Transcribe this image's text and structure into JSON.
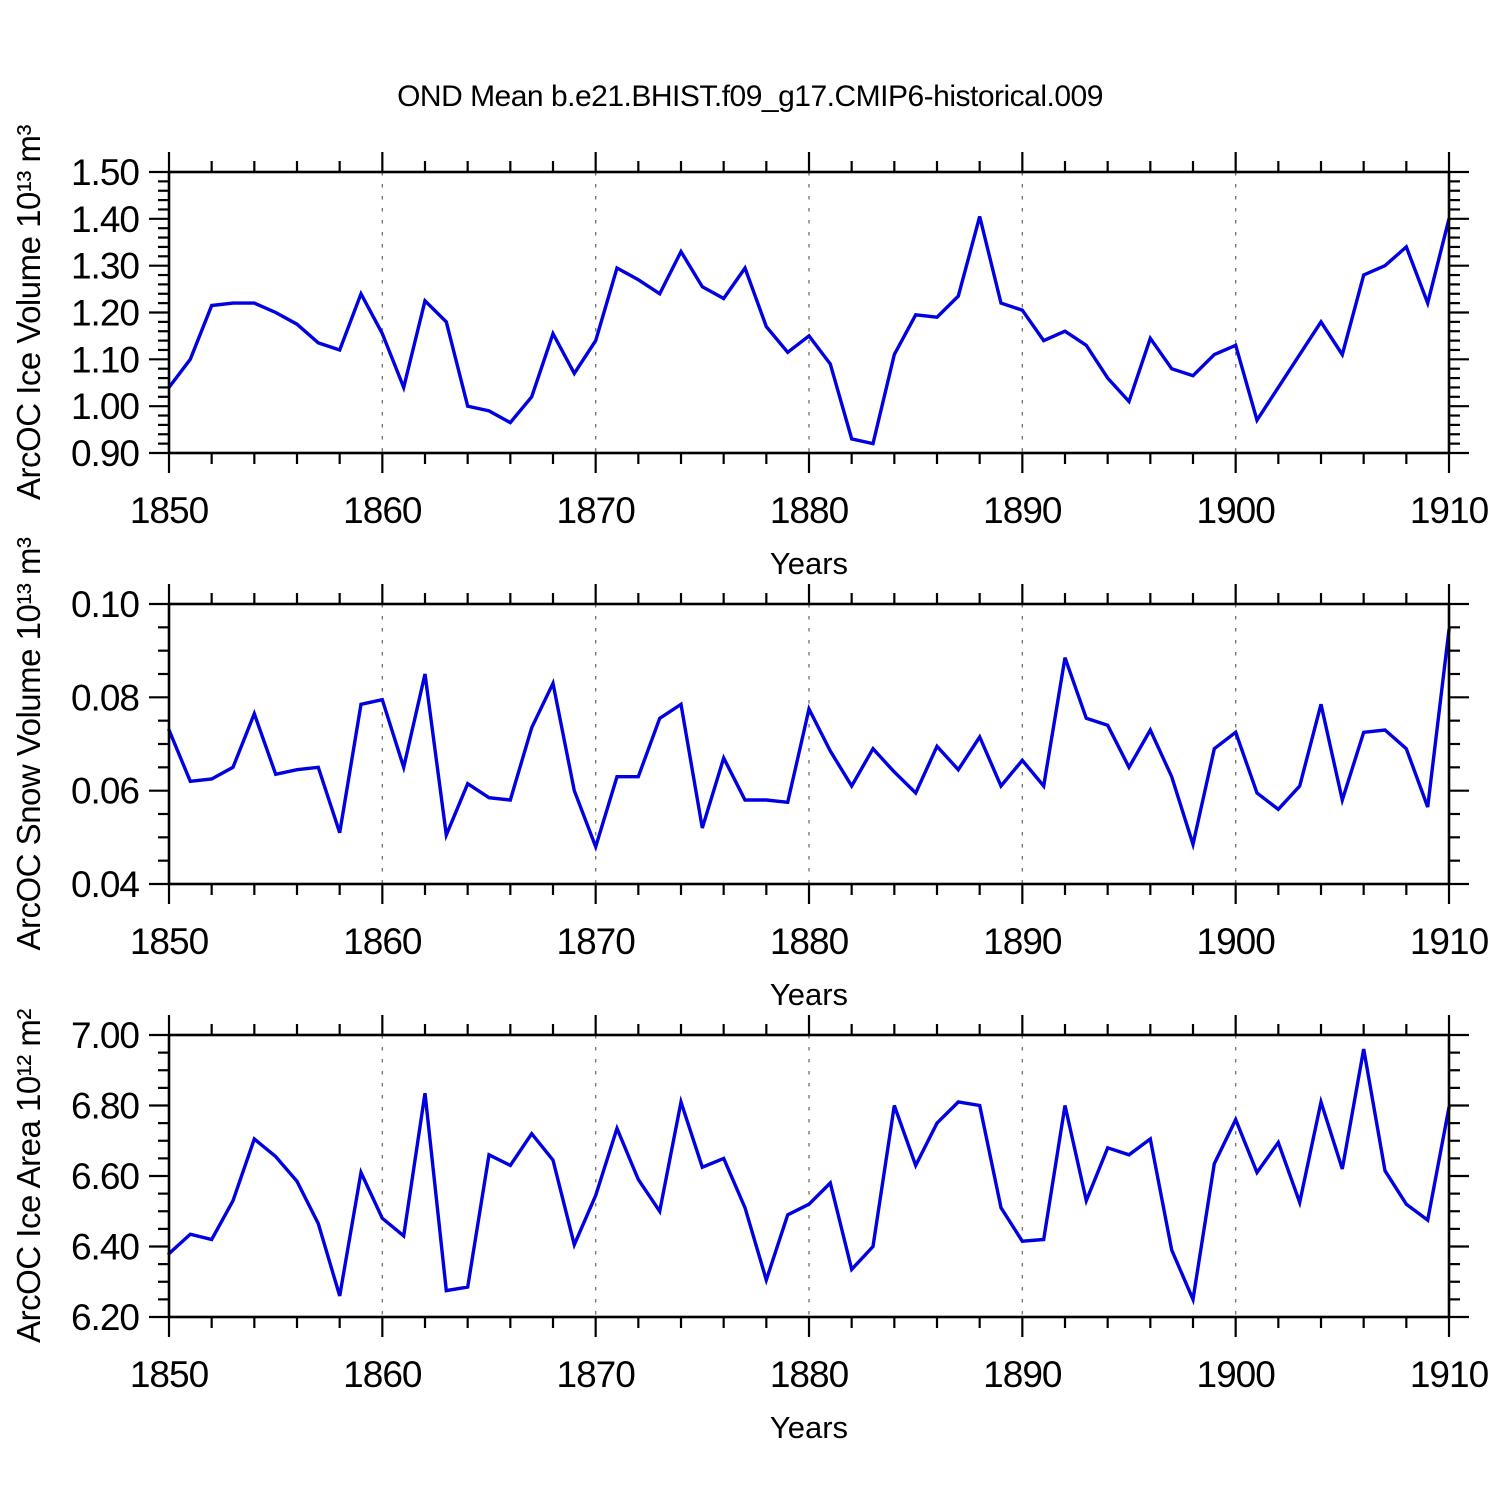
{
  "title": "OND Mean b.e21.BHIST.f09_g17.CMIP6-historical.009",
  "style": {
    "line_color": "#0000e0",
    "axis_color": "#000000",
    "grid_color": "#777777",
    "background": "#ffffff"
  },
  "chart_data": [
    {
      "id": "ice-volume",
      "type": "line",
      "ylabel": "ArcOC Ice Volume 10¹³ m³",
      "xlabel": "Years",
      "x_start": 1850,
      "xlim": [
        1850,
        1910
      ],
      "ylim": [
        0.9,
        1.5
      ],
      "x_ticks": {
        "major": [
          1850,
          1860,
          1870,
          1880,
          1890,
          1900,
          1910
        ],
        "labels": [
          "1850",
          "1860",
          "1870",
          "1880",
          "1890",
          "1900",
          "1910"
        ],
        "minor_step": 2,
        "gridlines": [
          1860,
          1870,
          1880,
          1890,
          1900
        ]
      },
      "y_ticks": {
        "major": [
          0.9,
          1.0,
          1.1,
          1.2,
          1.3,
          1.4,
          1.5
        ],
        "labels": [
          "0.90",
          "1.00",
          "1.10",
          "1.20",
          "1.30",
          "1.40",
          "1.50"
        ],
        "minor_step": 0.02
      },
      "values": [
        1.04,
        1.1,
        1.215,
        1.22,
        1.22,
        1.2,
        1.175,
        1.135,
        1.12,
        1.24,
        1.155,
        1.04,
        1.225,
        1.18,
        1.0,
        0.99,
        0.965,
        1.02,
        1.155,
        1.07,
        1.14,
        1.295,
        1.27,
        1.24,
        1.33,
        1.255,
        1.23,
        1.295,
        1.17,
        1.115,
        1.15,
        1.09,
        0.93,
        0.92,
        1.11,
        1.195,
        1.19,
        1.235,
        1.405,
        1.22,
        1.205,
        1.14,
        1.16,
        1.13,
        1.06,
        1.01,
        1.145,
        1.08,
        1.065,
        1.11,
        1.13,
        0.97,
        1.04,
        1.11,
        1.18,
        1.11,
        1.28,
        1.3,
        1.34,
        1.22,
        1.4
      ]
    },
    {
      "id": "snow-volume",
      "type": "line",
      "ylabel": "ArcOC Snow Volume 10¹³ m³",
      "xlabel": "Years",
      "x_start": 1850,
      "xlim": [
        1850,
        1910
      ],
      "ylim": [
        0.04,
        0.1
      ],
      "x_ticks": {
        "major": [
          1850,
          1860,
          1870,
          1880,
          1890,
          1900,
          1910
        ],
        "labels": [
          "1850",
          "1860",
          "1870",
          "1880",
          "1890",
          "1900",
          "1910"
        ],
        "minor_step": 2,
        "gridlines": [
          1860,
          1870,
          1880,
          1890,
          1900
        ]
      },
      "y_ticks": {
        "major": [
          0.04,
          0.06,
          0.08,
          0.1
        ],
        "labels": [
          "0.04",
          "0.06",
          "0.08",
          "0.10"
        ],
        "minor_step": 0.005
      },
      "values": [
        0.073,
        0.062,
        0.0625,
        0.065,
        0.0765,
        0.0635,
        0.0645,
        0.065,
        0.051,
        0.0785,
        0.0795,
        0.065,
        0.085,
        0.0505,
        0.0615,
        0.0585,
        0.058,
        0.0735,
        0.083,
        0.06,
        0.048,
        0.063,
        0.063,
        0.0755,
        0.0785,
        0.052,
        0.067,
        0.058,
        0.058,
        0.0575,
        0.0775,
        0.0685,
        0.061,
        0.069,
        0.064,
        0.0595,
        0.0695,
        0.0645,
        0.0715,
        0.061,
        0.0665,
        0.061,
        0.0885,
        0.0755,
        0.074,
        0.065,
        0.073,
        0.063,
        0.0485,
        0.069,
        0.0725,
        0.0595,
        0.056,
        0.061,
        0.0785,
        0.058,
        0.0725,
        0.073,
        0.069,
        0.0565,
        0.0945
      ]
    },
    {
      "id": "ice-area",
      "type": "line",
      "ylabel": "ArcOC Ice Area 10¹² m²",
      "xlabel": "Years",
      "x_start": 1850,
      "xlim": [
        1850,
        1910
      ],
      "ylim": [
        6.2,
        7.0
      ],
      "x_ticks": {
        "major": [
          1850,
          1860,
          1870,
          1880,
          1890,
          1900,
          1910
        ],
        "labels": [
          "1850",
          "1860",
          "1870",
          "1880",
          "1890",
          "1900",
          "1910"
        ],
        "minor_step": 2,
        "gridlines": [
          1860,
          1870,
          1880,
          1890,
          1900
        ]
      },
      "y_ticks": {
        "major": [
          6.2,
          6.4,
          6.6,
          6.8,
          7.0
        ],
        "labels": [
          "6.20",
          "6.40",
          "6.60",
          "6.80",
          "7.00"
        ],
        "minor_step": 0.05
      },
      "values": [
        6.38,
        6.435,
        6.42,
        6.53,
        6.705,
        6.655,
        6.585,
        6.465,
        6.26,
        6.61,
        6.48,
        6.43,
        6.835,
        6.275,
        6.285,
        6.66,
        6.63,
        6.72,
        6.645,
        6.405,
        6.545,
        6.735,
        6.59,
        6.5,
        6.81,
        6.625,
        6.65,
        6.51,
        6.305,
        6.49,
        6.52,
        6.58,
        6.335,
        6.4,
        6.8,
        6.63,
        6.75,
        6.81,
        6.8,
        6.51,
        6.415,
        6.42,
        6.8,
        6.53,
        6.68,
        6.66,
        6.705,
        6.39,
        6.25,
        6.635,
        6.76,
        6.61,
        6.695,
        6.525,
        6.81,
        6.62,
        6.96,
        6.615,
        6.52,
        6.475,
        6.795
      ]
    }
  ]
}
